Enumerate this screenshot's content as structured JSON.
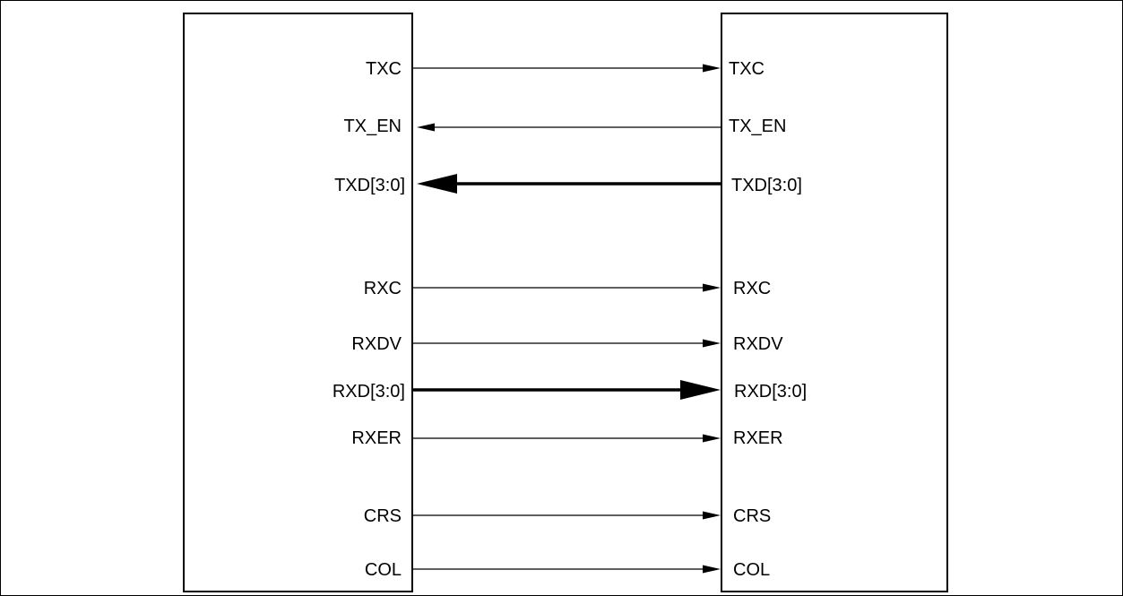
{
  "left_signals": [
    "TXC",
    "TX_EN",
    "TXD[3:0]",
    "RXC",
    "RXDV",
    "RXD[3:0]",
    "RXER",
    "CRS",
    "COL"
  ],
  "right_signals": [
    "TXC",
    "TX_EN",
    "TXD[3:0]",
    "RXC",
    "RXDV",
    "RXD[3:0]",
    "RXER",
    "CRS",
    "COL"
  ],
  "connections": [
    {
      "signal": "TXC",
      "direction": "left-to-right",
      "bus": false
    },
    {
      "signal": "TX_EN",
      "direction": "right-to-left",
      "bus": false
    },
    {
      "signal": "TXD[3:0]",
      "direction": "right-to-left",
      "bus": true
    },
    {
      "signal": "RXC",
      "direction": "left-to-right",
      "bus": false
    },
    {
      "signal": "RXDV",
      "direction": "left-to-right",
      "bus": false
    },
    {
      "signal": "RXD[3:0]",
      "direction": "left-to-right",
      "bus": true
    },
    {
      "signal": "RXER",
      "direction": "left-to-right",
      "bus": false
    },
    {
      "signal": "CRS",
      "direction": "left-to-right",
      "bus": false
    },
    {
      "signal": "COL",
      "direction": "left-to-right",
      "bus": false
    }
  ],
  "colors": {
    "line": "#000000",
    "background": "#ffffff"
  }
}
